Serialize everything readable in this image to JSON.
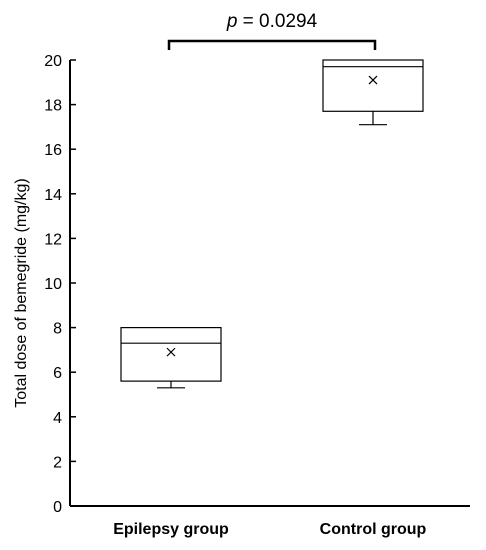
{
  "chart_data": {
    "type": "box",
    "ylabel": "Total dose of bemegride (mg/kg)",
    "ylim": [
      0,
      20
    ],
    "yticks": [
      0,
      2,
      4,
      6,
      8,
      10,
      12,
      14,
      16,
      18,
      20
    ],
    "categories": [
      "Epilepsy group",
      "Control group"
    ],
    "boxes": [
      {
        "category": "Epilepsy group",
        "whisker_low": 5.3,
        "q1": 5.6,
        "median": 7.3,
        "q3": 8.0,
        "whisker_high": 8.0,
        "mean": 6.9
      },
      {
        "category": "Control group",
        "whisker_low": 17.1,
        "q1": 17.7,
        "median": 19.7,
        "q3": 20.0,
        "whisker_high": 20.0,
        "mean": 19.1
      }
    ],
    "annotation": {
      "p_symbol": "p",
      "p_rest": " = 0.0294"
    },
    "grid": false
  }
}
